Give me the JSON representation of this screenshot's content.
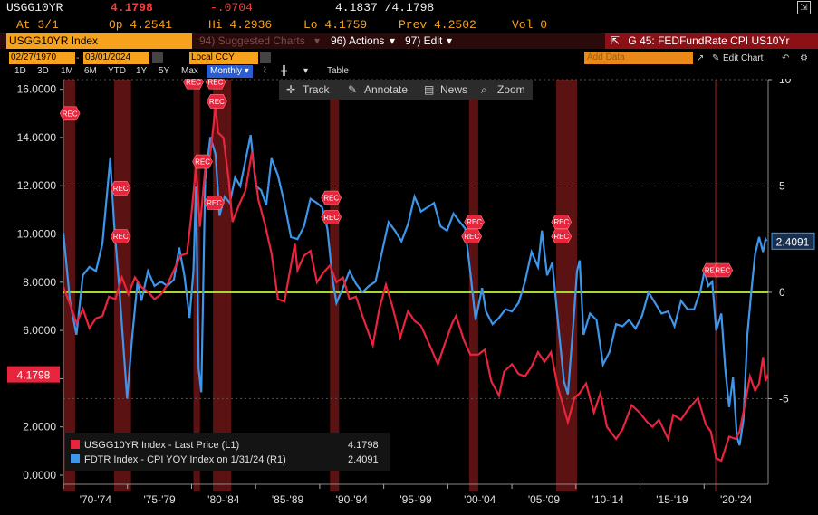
{
  "header": {
    "ticker": "USGG10YR",
    "last": "4.1798",
    "change": "-.0704",
    "bid_ask": "4.1837 /4.1798",
    "date": "At 3/1",
    "open": "Op 4.2541",
    "high": "Hi 4.2936",
    "low": "Lo 4.1759",
    "prev": "Prev  4.2502",
    "vol": "Vol 0"
  },
  "commandbar": {
    "ticker_field": "USGG10YR Index",
    "suggested": "94) Suggested Charts",
    "actions": "96) Actions",
    "edit": "97) Edit",
    "title": "G 45: FEDFundRate CPI US10Yr"
  },
  "settings": {
    "start_date": "02/27/1970",
    "end_date": "03/01/2024",
    "currency": "Local CCY",
    "add_data": "Add Data",
    "edit_chart": "Edit Chart"
  },
  "periods": [
    "1D",
    "3D",
    "1M",
    "6M",
    "YTD",
    "1Y",
    "5Y",
    "Max"
  ],
  "frequency": "Monthly",
  "table_label": "Table",
  "toolbar": {
    "track": "Track",
    "annotate": "Annotate",
    "news": "News",
    "zoom": "Zoom"
  },
  "legend": {
    "s1_label": "USGG10YR Index - Last Price (L1)",
    "s1_value": "4.1798",
    "s2_label": "FDTR Index - CPI YOY Index on 1/31/24 (R1)",
    "s2_value": "2.4091"
  },
  "colors": {
    "series1": "#e8253d",
    "series2": "#3d96ea",
    "zero_line": "#a4dc2c",
    "recession": "#6b1515",
    "background": "#000000"
  },
  "chart_data": {
    "type": "line",
    "x_labels": [
      "'70-'74",
      "'75-'79",
      "'80-'84",
      "'85-'89",
      "'90-'94",
      "'95-'99",
      "'00-'04",
      "'05-'09",
      "'10-'14",
      "'15-'19",
      "'20-'24"
    ],
    "x_range": [
      1970.0,
      2024.2
    ],
    "left_axis": {
      "ticks": [
        "0.0000",
        "2.0000",
        "4.0000",
        "6.0000",
        "8.0000",
        "10.0000",
        "12.0000",
        "14.0000",
        "16.0000"
      ],
      "range": [
        0,
        16.4
      ]
    },
    "right_axis": {
      "ticks": [
        "-5",
        "0",
        "5",
        "10"
      ],
      "range": [
        -8.6,
        10.0
      ]
    },
    "left_last_label": "4.1798",
    "right_last_label": "2.4091",
    "zero_line_value": 0,
    "recession_label": "REC",
    "recessions": [
      [
        1970.0,
        1970.9
      ],
      [
        1973.9,
        1975.2
      ],
      [
        1980.0,
        1980.5
      ],
      [
        1981.5,
        1982.9
      ],
      [
        1990.5,
        1991.2
      ],
      [
        2001.2,
        2001.9
      ],
      [
        2007.9,
        2009.5
      ],
      [
        2020.1,
        2020.3
      ]
    ],
    "series": [
      {
        "name": "USGG10YR Index - Last Price (L1)",
        "axis": "left",
        "points": [
          [
            1970.0,
            7.8
          ],
          [
            1970.5,
            7.1
          ],
          [
            1971.0,
            6.3
          ],
          [
            1971.5,
            6.9
          ],
          [
            1972.0,
            6.1
          ],
          [
            1972.5,
            6.5
          ],
          [
            1973.0,
            6.6
          ],
          [
            1973.5,
            7.4
          ],
          [
            1974.0,
            7.3
          ],
          [
            1974.5,
            8.2
          ],
          [
            1975.0,
            7.5
          ],
          [
            1975.5,
            8.2
          ],
          [
            1976.0,
            7.8
          ],
          [
            1976.5,
            7.6
          ],
          [
            1977.0,
            7.3
          ],
          [
            1977.5,
            7.5
          ],
          [
            1978.0,
            7.9
          ],
          [
            1978.5,
            8.5
          ],
          [
            1979.0,
            9.1
          ],
          [
            1979.5,
            9.2
          ],
          [
            1979.8,
            10.6
          ],
          [
            1980.2,
            12.8
          ],
          [
            1980.5,
            10.3
          ],
          [
            1980.9,
            12.7
          ],
          [
            1981.3,
            13.3
          ],
          [
            1981.7,
            15.3
          ],
          [
            1981.9,
            14.2
          ],
          [
            1982.3,
            14.0
          ],
          [
            1982.7,
            12.3
          ],
          [
            1983.0,
            10.5
          ],
          [
            1983.5,
            11.2
          ],
          [
            1984.0,
            11.8
          ],
          [
            1984.5,
            13.4
          ],
          [
            1985.0,
            11.4
          ],
          [
            1985.5,
            10.4
          ],
          [
            1986.0,
            9.2
          ],
          [
            1986.5,
            7.3
          ],
          [
            1987.0,
            7.2
          ],
          [
            1987.5,
            8.7
          ],
          [
            1987.8,
            9.6
          ],
          [
            1988.0,
            8.5
          ],
          [
            1988.5,
            9.1
          ],
          [
            1989.0,
            9.3
          ],
          [
            1989.5,
            8.0
          ],
          [
            1990.0,
            8.4
          ],
          [
            1990.5,
            8.7
          ],
          [
            1991.0,
            8.0
          ],
          [
            1991.5,
            8.2
          ],
          [
            1992.0,
            7.3
          ],
          [
            1992.5,
            7.4
          ],
          [
            1993.0,
            6.6
          ],
          [
            1993.8,
            5.4
          ],
          [
            1994.3,
            6.9
          ],
          [
            1994.8,
            7.9
          ],
          [
            1995.3,
            7.0
          ],
          [
            1995.9,
            5.7
          ],
          [
            1996.5,
            6.8
          ],
          [
            1997.0,
            6.4
          ],
          [
            1997.5,
            6.2
          ],
          [
            1998.0,
            5.6
          ],
          [
            1998.8,
            4.6
          ],
          [
            1999.3,
            5.4
          ],
          [
            1999.9,
            6.3
          ],
          [
            2000.2,
            6.6
          ],
          [
            2000.8,
            5.6
          ],
          [
            2001.3,
            5.0
          ],
          [
            2001.9,
            5.0
          ],
          [
            2002.4,
            5.2
          ],
          [
            2002.9,
            3.9
          ],
          [
            2003.5,
            3.3
          ],
          [
            2003.9,
            4.3
          ],
          [
            2004.5,
            4.6
          ],
          [
            2005.0,
            4.2
          ],
          [
            2005.5,
            4.1
          ],
          [
            2006.0,
            4.5
          ],
          [
            2006.5,
            5.1
          ],
          [
            2007.0,
            4.7
          ],
          [
            2007.5,
            5.1
          ],
          [
            2008.0,
            3.7
          ],
          [
            2008.8,
            2.2
          ],
          [
            2009.3,
            3.2
          ],
          [
            2009.7,
            3.4
          ],
          [
            2010.2,
            3.8
          ],
          [
            2010.8,
            2.6
          ],
          [
            2011.3,
            3.4
          ],
          [
            2011.8,
            2.0
          ],
          [
            2012.5,
            1.5
          ],
          [
            2013.0,
            1.9
          ],
          [
            2013.7,
            2.9
          ],
          [
            2014.3,
            2.6
          ],
          [
            2014.9,
            2.2
          ],
          [
            2015.3,
            2.0
          ],
          [
            2015.8,
            2.3
          ],
          [
            2016.5,
            1.5
          ],
          [
            2016.9,
            2.5
          ],
          [
            2017.5,
            2.3
          ],
          [
            2018.0,
            2.7
          ],
          [
            2018.8,
            3.2
          ],
          [
            2019.4,
            2.1
          ],
          [
            2019.8,
            1.8
          ],
          [
            2020.2,
            0.7
          ],
          [
            2020.6,
            0.6
          ],
          [
            2021.2,
            1.6
          ],
          [
            2021.7,
            1.5
          ],
          [
            2022.0,
            1.8
          ],
          [
            2022.4,
            2.9
          ],
          [
            2022.8,
            4.1
          ],
          [
            2023.2,
            3.5
          ],
          [
            2023.5,
            3.8
          ],
          [
            2023.8,
            4.9
          ],
          [
            2024.0,
            3.9
          ],
          [
            2024.17,
            4.1798
          ]
        ]
      },
      {
        "name": "FDTR Index - CPI YOY Index on 1/31/24 (R1)",
        "axis": "right",
        "points": [
          [
            1970.0,
            2.8
          ],
          [
            1970.5,
            -0.4
          ],
          [
            1971.0,
            -2.0
          ],
          [
            1971.5,
            0.8
          ],
          [
            1972.0,
            1.2
          ],
          [
            1972.5,
            1.0
          ],
          [
            1973.0,
            2.3
          ],
          [
            1973.3,
            4.3
          ],
          [
            1973.6,
            6.3
          ],
          [
            1973.9,
            3.2
          ],
          [
            1974.3,
            0.2
          ],
          [
            1974.6,
            -2.4
          ],
          [
            1974.9,
            -5.0
          ],
          [
            1975.3,
            -2.0
          ],
          [
            1975.7,
            0.5
          ],
          [
            1976.0,
            -0.4
          ],
          [
            1976.5,
            1.0
          ],
          [
            1977.0,
            0.3
          ],
          [
            1977.5,
            0.5
          ],
          [
            1978.0,
            0.3
          ],
          [
            1978.5,
            0.6
          ],
          [
            1978.9,
            2.1
          ],
          [
            1979.3,
            0.8
          ],
          [
            1979.7,
            -1.2
          ],
          [
            1980.0,
            1.0
          ],
          [
            1980.2,
            5.0
          ],
          [
            1980.4,
            -3.6
          ],
          [
            1980.6,
            -4.7
          ],
          [
            1980.9,
            5.3
          ],
          [
            1981.3,
            7.3
          ],
          [
            1981.7,
            6.5
          ],
          [
            1982.0,
            3.6
          ],
          [
            1982.4,
            4.5
          ],
          [
            1982.8,
            4.2
          ],
          [
            1983.2,
            5.4
          ],
          [
            1983.6,
            5.0
          ],
          [
            1984.0,
            6.2
          ],
          [
            1984.4,
            7.4
          ],
          [
            1984.8,
            5.0
          ],
          [
            1985.2,
            4.8
          ],
          [
            1985.6,
            4.1
          ],
          [
            1986.0,
            6.3
          ],
          [
            1986.5,
            5.5
          ],
          [
            1987.0,
            4.2
          ],
          [
            1987.5,
            2.6
          ],
          [
            1988.0,
            2.5
          ],
          [
            1988.5,
            3.1
          ],
          [
            1989.0,
            4.4
          ],
          [
            1989.5,
            4.2
          ],
          [
            1989.9,
            4.0
          ],
          [
            1990.3,
            3.0
          ],
          [
            1990.7,
            0.6
          ],
          [
            1991.0,
            -0.5
          ],
          [
            1991.5,
            0.2
          ],
          [
            1992.0,
            1.0
          ],
          [
            1992.5,
            0.4
          ],
          [
            1993.0,
            0.0
          ],
          [
            1993.5,
            0.3
          ],
          [
            1994.0,
            0.5
          ],
          [
            1994.5,
            1.9
          ],
          [
            1995.0,
            3.3
          ],
          [
            1995.5,
            2.9
          ],
          [
            1996.0,
            2.4
          ],
          [
            1996.5,
            3.2
          ],
          [
            1997.0,
            4.5
          ],
          [
            1997.5,
            3.8
          ],
          [
            1998.0,
            4.0
          ],
          [
            1998.5,
            4.2
          ],
          [
            1999.0,
            3.1
          ],
          [
            1999.5,
            2.9
          ],
          [
            2000.0,
            3.7
          ],
          [
            2000.5,
            3.3
          ],
          [
            2000.9,
            3.0
          ],
          [
            2001.3,
            0.9
          ],
          [
            2001.7,
            -1.3
          ],
          [
            2002.2,
            0.2
          ],
          [
            2002.5,
            -0.9
          ],
          [
            2003.0,
            -1.5
          ],
          [
            2003.5,
            -1.2
          ],
          [
            2004.0,
            -0.8
          ],
          [
            2004.5,
            -0.9
          ],
          [
            2005.0,
            -0.5
          ],
          [
            2005.5,
            0.5
          ],
          [
            2006.0,
            1.9
          ],
          [
            2006.5,
            1.2
          ],
          [
            2006.8,
            2.9
          ],
          [
            2007.2,
            0.8
          ],
          [
            2007.6,
            1.4
          ],
          [
            2008.0,
            -1.2
          ],
          [
            2008.5,
            -4.2
          ],
          [
            2008.8,
            -4.8
          ],
          [
            2009.2,
            -1.6
          ],
          [
            2009.5,
            1.0
          ],
          [
            2009.7,
            1.5
          ],
          [
            2010.0,
            -2.0
          ],
          [
            2010.5,
            -1.0
          ],
          [
            2011.0,
            -1.3
          ],
          [
            2011.5,
            -3.4
          ],
          [
            2012.0,
            -2.8
          ],
          [
            2012.5,
            -1.5
          ],
          [
            2013.0,
            -1.6
          ],
          [
            2013.5,
            -1.3
          ],
          [
            2014.0,
            -1.7
          ],
          [
            2014.5,
            -1.1
          ],
          [
            2015.0,
            0.0
          ],
          [
            2015.5,
            -0.5
          ],
          [
            2016.0,
            -1.0
          ],
          [
            2016.5,
            -0.9
          ],
          [
            2017.0,
            -1.6
          ],
          [
            2017.5,
            -0.4
          ],
          [
            2018.0,
            -0.8
          ],
          [
            2018.5,
            -0.8
          ],
          [
            2019.0,
            0.1
          ],
          [
            2019.3,
            1.0
          ],
          [
            2019.6,
            0.3
          ],
          [
            2019.9,
            0.5
          ],
          [
            2020.2,
            -1.8
          ],
          [
            2020.6,
            -1.0
          ],
          [
            2020.9,
            -3.6
          ],
          [
            2021.2,
            -5.4
          ],
          [
            2021.5,
            -4.0
          ],
          [
            2021.8,
            -6.8
          ],
          [
            2022.0,
            -7.2
          ],
          [
            2022.3,
            -6.0
          ],
          [
            2022.6,
            -2.0
          ],
          [
            2022.9,
            0.0
          ],
          [
            2023.2,
            1.8
          ],
          [
            2023.5,
            2.6
          ],
          [
            2023.8,
            1.9
          ],
          [
            2024.0,
            2.5
          ],
          [
            2024.08,
            2.4091
          ]
        ]
      }
    ]
  }
}
